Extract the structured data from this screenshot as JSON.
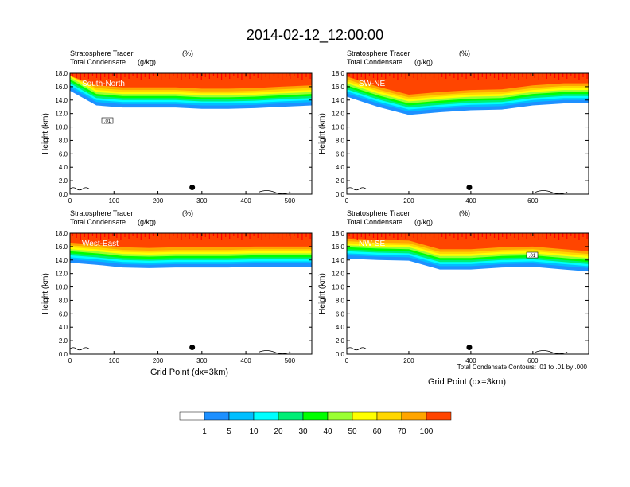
{
  "figure": {
    "title": "2014-02-12_12:00:00",
    "xlabel": "Grid Point (dx=3km)",
    "ylabel": "Height (km)",
    "contour_note": "Total Condensate Contours: .01 to .01 by .000"
  },
  "chart_data": [
    {
      "type": "heatmap",
      "panel": "South-North",
      "label": "South-North",
      "subtitle_left_1": "Stratosphere Tracer",
      "subtitle_right_1": "(%)",
      "subtitle_left_2": "Total Condensate",
      "subtitle_right_2": "(g/kg)",
      "xlim": [
        0,
        550
      ],
      "xticks": [
        0,
        100,
        200,
        300,
        400,
        500
      ],
      "ylim": [
        0,
        18
      ],
      "yticks": [
        "0.0",
        "2.0",
        "4.0",
        "6.0",
        "8.0",
        "10.0",
        "12.0",
        "14.0",
        "16.0",
        "18.0"
      ],
      "marker_x": 278,
      "contour_label": ".01",
      "profile_x": [
        0,
        60,
        120,
        180,
        240,
        300,
        360,
        420,
        480,
        550
      ],
      "profile_base_km": [
        15.4,
        13.2,
        12.9,
        12.9,
        12.9,
        12.7,
        12.7,
        12.8,
        13.0,
        13.2
      ]
    },
    {
      "type": "heatmap",
      "panel": "SW-NE",
      "label": "SW-NE",
      "subtitle_left_1": "Stratosphere Tracer",
      "subtitle_right_1": "(%)",
      "subtitle_left_2": "Total Condensate",
      "subtitle_right_2": "(g/kg)",
      "xlim": [
        0,
        780
      ],
      "xticks": [
        0,
        200,
        400,
        600
      ],
      "ylim": [
        0,
        18
      ],
      "yticks": [
        "0.0",
        "2.0",
        "4.0",
        "6.0",
        "8.0",
        "10.0",
        "12.0",
        "14.0",
        "16.0",
        "18.0"
      ],
      "marker_x": 395,
      "contour_label": "",
      "profile_x": [
        0,
        100,
        200,
        300,
        400,
        500,
        600,
        700,
        780
      ],
      "profile_base_km": [
        14.5,
        13.0,
        11.8,
        12.2,
        12.5,
        12.6,
        13.2,
        13.5,
        13.5
      ]
    },
    {
      "type": "heatmap",
      "panel": "West-East",
      "label": "West-East",
      "subtitle_left_1": "Stratosphere Tracer",
      "subtitle_right_1": "(%)",
      "subtitle_left_2": "Total Condensate",
      "subtitle_right_2": "(g/kg)",
      "xlim": [
        0,
        550
      ],
      "xticks": [
        0,
        100,
        200,
        300,
        400,
        500
      ],
      "ylim": [
        0,
        18
      ],
      "yticks": [
        "0.0",
        "2.0",
        "4.0",
        "6.0",
        "8.0",
        "10.0",
        "12.0",
        "14.0",
        "16.0",
        "18.0"
      ],
      "marker_x": 278,
      "contour_label": "",
      "profile_x": [
        0,
        60,
        120,
        180,
        240,
        300,
        360,
        420,
        480,
        550
      ],
      "profile_base_km": [
        13.6,
        13.3,
        12.9,
        12.8,
        12.9,
        12.9,
        12.9,
        13.0,
        13.0,
        13.0
      ]
    },
    {
      "type": "heatmap",
      "panel": "NW-SE",
      "label": "NW-SE",
      "subtitle_left_1": "Stratosphere Tracer",
      "subtitle_right_1": "(%)",
      "subtitle_left_2": "Total Condensate",
      "subtitle_right_2": "(g/kg)",
      "xlim": [
        0,
        780
      ],
      "xticks": [
        0,
        200,
        400,
        600
      ],
      "ylim": [
        0,
        18
      ],
      "yticks": [
        "0.0",
        "2.0",
        "4.0",
        "6.0",
        "8.0",
        "10.0",
        "12.0",
        "14.0",
        "16.0",
        "18.0"
      ],
      "marker_x": 395,
      "contour_label": ".01",
      "profile_x": [
        0,
        100,
        200,
        300,
        400,
        500,
        600,
        700,
        780
      ],
      "profile_base_km": [
        14.2,
        14.0,
        13.9,
        12.6,
        12.6,
        12.9,
        13.0,
        12.6,
        12.3
      ]
    }
  ],
  "colorbar": {
    "labels": [
      "1",
      "5",
      "10",
      "20",
      "30",
      "40",
      "50",
      "60",
      "70",
      "100"
    ],
    "colors": [
      "#ffffff",
      "#1e90ff",
      "#00bfff",
      "#00ffff",
      "#00ee76",
      "#00ff00",
      "#9aff32",
      "#ffff00",
      "#ffd700",
      "#ffa500",
      "#ff4500",
      "#ff0000"
    ]
  }
}
